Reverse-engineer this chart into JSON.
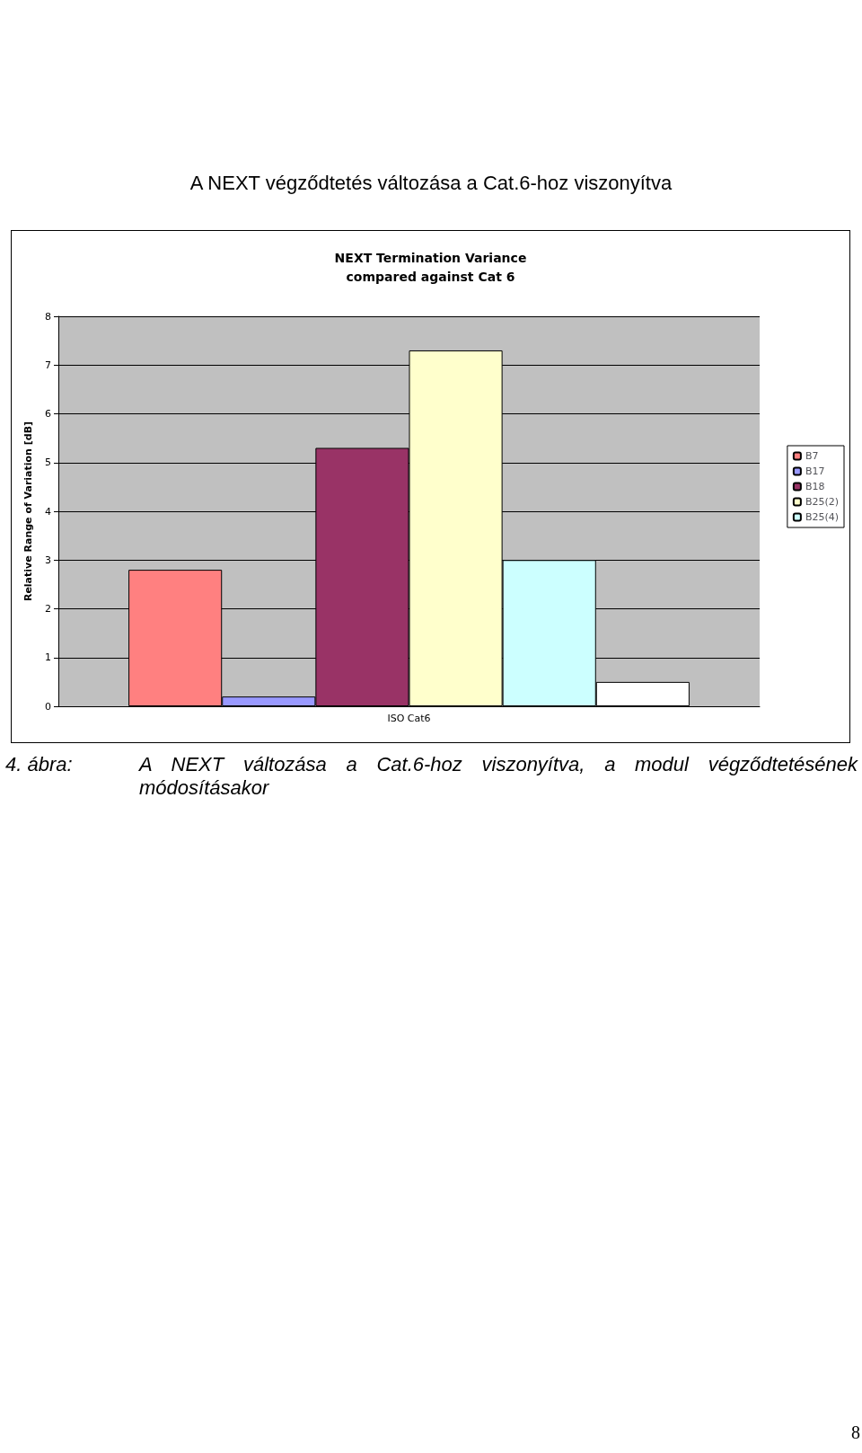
{
  "chart_data": {
    "type": "bar",
    "title": "A NEXT végződtetés változása a Cat.6-hoz viszonyítva",
    "subtitle": "NEXT Termination Variance\ncompared against Cat 6",
    "ylabel": "Relative Range of Variation [dB]",
    "categories": [
      "ISO Cat6"
    ],
    "series": [
      {
        "name": "B7",
        "color": "#ff8080",
        "values": [
          2.8
        ]
      },
      {
        "name": "B17",
        "color": "#9999ff",
        "values": [
          0.2
        ]
      },
      {
        "name": "B18",
        "color": "#993366",
        "values": [
          5.3
        ]
      },
      {
        "name": "B25(2)",
        "color": "#ffffcc",
        "values": [
          7.3
        ]
      },
      {
        "name": "B25(4)",
        "color": "#ccffff",
        "values": [
          3.0
        ]
      },
      {
        "color": "#ffffff",
        "values": [
          0.5
        ]
      }
    ],
    "ylim": [
      0,
      8
    ],
    "yticks": [
      0,
      1,
      2,
      3,
      4,
      5,
      6,
      7,
      8
    ],
    "grid": "y",
    "legend": "right",
    "annotations": [
      "4. ábra:",
      "A NEXT változása a Cat.6-hoz viszonyítva, a modul végződtetésének módosításakor",
      "8"
    ]
  }
}
